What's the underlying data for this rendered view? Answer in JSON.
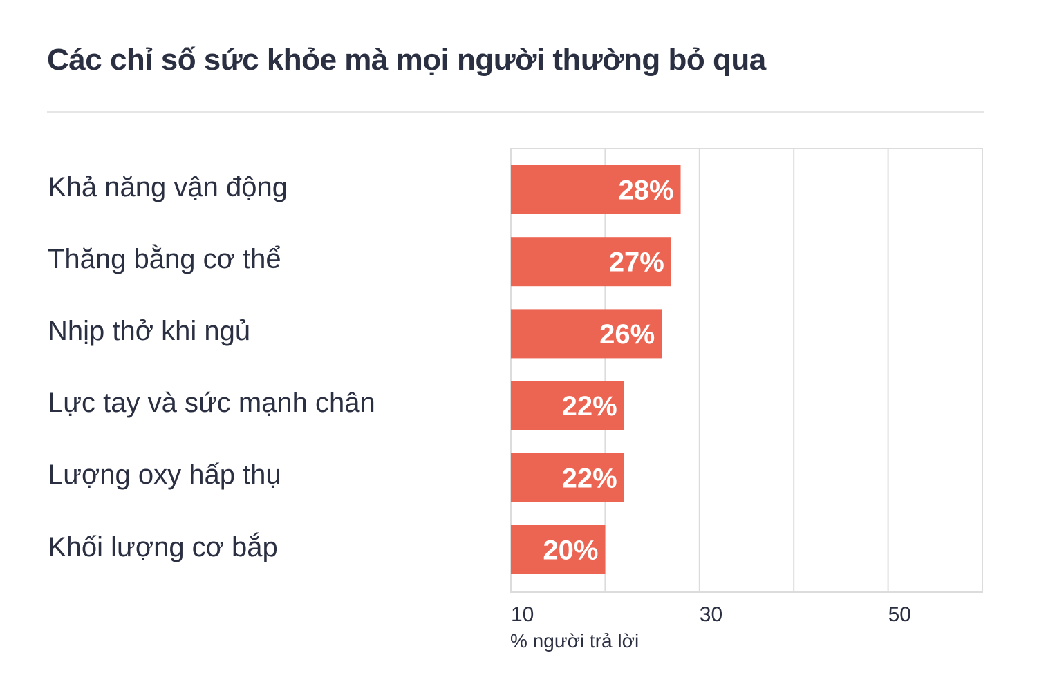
{
  "title": "Các chỉ số sức khỏe mà mọi người thường bỏ qua",
  "colors": {
    "bar": "#ec6553",
    "grid": "#dcdcdc",
    "text": "#2b2f42",
    "bar_label": "#ffffff"
  },
  "chart_data": {
    "type": "bar",
    "orientation": "horizontal",
    "categories": [
      "Khả năng vận động",
      "Thăng bằng cơ thể",
      "Nhịp thở khi ngủ",
      "Lực tay và sức mạnh chân",
      "Lượng oxy hấp thụ",
      "Khối lượng cơ bắp"
    ],
    "values": [
      28,
      27,
      26,
      22,
      22,
      20
    ],
    "value_labels": [
      "28%",
      "27%",
      "26%",
      "22%",
      "22%",
      "20%"
    ],
    "xlim": [
      10,
      60
    ],
    "gridlines": [
      10,
      20,
      30,
      40,
      50,
      60
    ],
    "tick_labels": [
      {
        "value": 10,
        "label": "10"
      },
      {
        "value": 30,
        "label": "30"
      },
      {
        "value": 50,
        "label": "50"
      }
    ],
    "xlabel": "% người trả lời",
    "grid": true
  }
}
